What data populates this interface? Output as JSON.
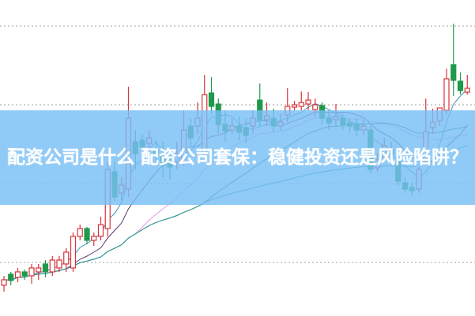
{
  "title": "配资公司是什么 配资公司套保：稳健投资还是风险陷阱？",
  "colors": {
    "up": "#d9343a",
    "down": "#1f9a4b",
    "grid": "#a0a0a0",
    "banner": "#78bef5"
  },
  "chart_data": {
    "type": "candlestick",
    "fields": [
      "open",
      "high",
      "low",
      "close"
    ],
    "grid": "horizontal-dotted",
    "moving_averages": [
      {
        "period": 5,
        "color": "#3a8fb7"
      },
      {
        "period": 10,
        "color": "#5a3a6a"
      },
      {
        "period": 20,
        "color": "#e59ae6"
      },
      {
        "period": 30,
        "color": "#2f7a3a"
      },
      {
        "period": 60,
        "color": "#2a9aa0"
      }
    ],
    "candles": [
      [
        3.8,
        5.0,
        3.0,
        4.5
      ],
      [
        5.2,
        5.5,
        3.8,
        4.4
      ],
      [
        4.8,
        6.0,
        4.2,
        5.5
      ],
      [
        5.5,
        5.8,
        4.5,
        5.0
      ],
      [
        5.0,
        6.5,
        4.0,
        6.0
      ],
      [
        5.5,
        6.5,
        4.5,
        6.0
      ],
      [
        6.5,
        7.0,
        4.8,
        5.5
      ],
      [
        5.5,
        7.5,
        5.0,
        7.0
      ],
      [
        6.0,
        7.5,
        5.5,
        7.0
      ],
      [
        6.5,
        8.5,
        5.5,
        8.0
      ],
      [
        6.0,
        10.5,
        5.5,
        10.0
      ],
      [
        10.0,
        11.5,
        9.5,
        11.0
      ],
      [
        11.0,
        11.2,
        9.0,
        9.5
      ],
      [
        9.5,
        10.5,
        8.8,
        10.0
      ],
      [
        10.0,
        12.5,
        9.5,
        11.5
      ],
      [
        11.0,
        19.5,
        10.0,
        18.5
      ],
      [
        18.2,
        19.5,
        14.5,
        15.0
      ],
      [
        15.5,
        17.5,
        14.5,
        16.5
      ],
      [
        16.0,
        29.0,
        15.0,
        25.0
      ],
      [
        22.0,
        23.5,
        18.5,
        20.5
      ],
      [
        22.2,
        23.0,
        20.0,
        21.4
      ],
      [
        21.8,
        23.5,
        20.5,
        22.5
      ],
      [
        21.0,
        22.2,
        19.0,
        20.4
      ],
      [
        20.2,
        22.0,
        17.5,
        19.0
      ],
      [
        19.5,
        20.5,
        17.2,
        18.8
      ],
      [
        19.5,
        22.0,
        18.5,
        20.5
      ],
      [
        19.5,
        26.0,
        19.0,
        23.5
      ],
      [
        24.0,
        25.0,
        21.5,
        22.5
      ],
      [
        24.0,
        27.0,
        23.0,
        25.0
      ],
      [
        20.5,
        30.5,
        20.0,
        28.0
      ],
      [
        28.2,
        30.2,
        25.5,
        26.5
      ],
      [
        26.8,
        27.5,
        23.0,
        24.2
      ],
      [
        24.2,
        26.0,
        22.0,
        23.4
      ],
      [
        23.5,
        25.0,
        23.0,
        24.0
      ],
      [
        24.0,
        25.2,
        22.2,
        23.2
      ],
      [
        23.8,
        25.0,
        21.8,
        22.8
      ],
      [
        24.0,
        26.0,
        23.0,
        25.0
      ],
      [
        27.3,
        29.4,
        24.0,
        24.7
      ],
      [
        24.8,
        27.0,
        24.0,
        25.3
      ],
      [
        25.0,
        26.2,
        23.2,
        24.0
      ],
      [
        24.0,
        25.5,
        23.5,
        24.5
      ],
      [
        25.4,
        28.8,
        24.5,
        26.5
      ],
      [
        26.4,
        27.2,
        26.0,
        26.7
      ],
      [
        26.5,
        28.4,
        26.0,
        27.0
      ],
      [
        26.8,
        28.3,
        26.0,
        27.3
      ],
      [
        26.1,
        27.5,
        25.2,
        26.7
      ],
      [
        26.6,
        27.0,
        24.2,
        25.0
      ],
      [
        25.0,
        26.0,
        23.5,
        24.4
      ],
      [
        24.8,
        26.8,
        24.0,
        25.2
      ],
      [
        25.0,
        25.5,
        23.5,
        24.2
      ],
      [
        24.4,
        25.0,
        23.2,
        24.0
      ],
      [
        24.3,
        25.0,
        22.8,
        23.5
      ],
      [
        23.5,
        24.8,
        22.8,
        24.0
      ],
      [
        23.5,
        24.0,
        18.0,
        18.5
      ],
      [
        18.7,
        20.5,
        18.2,
        19.7
      ],
      [
        20.0,
        22.5,
        19.5,
        21.5
      ],
      [
        21.0,
        22.0,
        19.5,
        20.5
      ],
      [
        19.5,
        20.0,
        16.5,
        17.0
      ],
      [
        16.8,
        17.5,
        15.5,
        16.0
      ],
      [
        16.2,
        16.8,
        15.2,
        15.8
      ],
      [
        16.0,
        18.8,
        15.5,
        18.5
      ],
      [
        20.0,
        27.5,
        19.5,
        23.3
      ],
      [
        23.8,
        26.2,
        23.0,
        24.5
      ],
      [
        24.7,
        26.3,
        24.0,
        26.3
      ],
      [
        26.0,
        31.3,
        25.5,
        30.0
      ],
      [
        31.8,
        37.0,
        27.8,
        29.8
      ],
      [
        29.7,
        30.8,
        28.0,
        28.5
      ],
      [
        28.3,
        30.5,
        28.0,
        28.8
      ]
    ]
  }
}
